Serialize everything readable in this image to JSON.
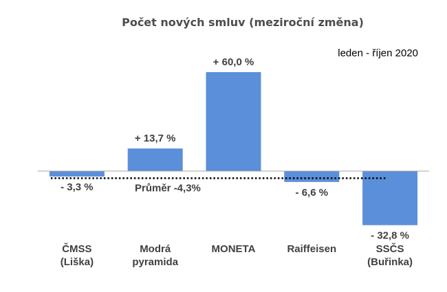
{
  "chart_data": {
    "type": "bar",
    "title": "Počet nových smluv (meziroční změna)",
    "annotation": "leden - říjen 2020",
    "categories": [
      [
        "ČMSS",
        "(Liška)"
      ],
      [
        "Modrá",
        "pyramida"
      ],
      [
        "MONETA"
      ],
      [
        "Raiffeisen"
      ],
      [
        "SSČS",
        "(Buřinka)"
      ]
    ],
    "values": [
      -3.3,
      13.7,
      60.0,
      -6.6,
      -32.8
    ],
    "data_labels": [
      "- 3,3 %",
      "+ 13,7 %",
      "+ 60,0 %",
      "- 6,6 %",
      "- 32,8 %"
    ],
    "average": {
      "value": -4.3,
      "label": "Průměr -4,3%"
    },
    "bar_color": "#5b8fd9",
    "axis_color": "#a6a6a6",
    "average_line_color": "#000000"
  }
}
